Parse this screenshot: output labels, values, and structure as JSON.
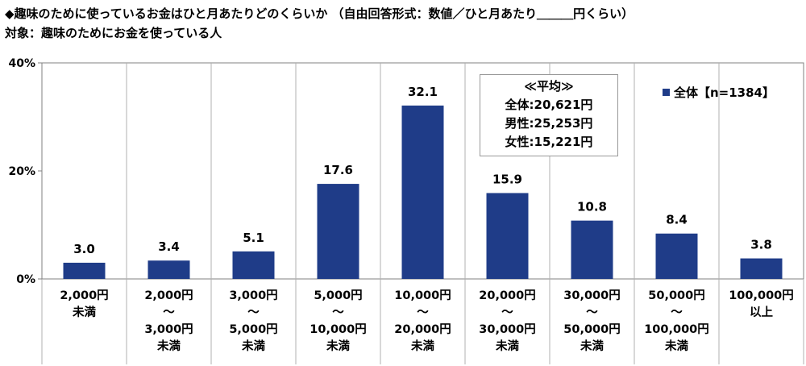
{
  "header": {
    "title": "◆趣味のために使っているお金はひと月あたりどのくらいか （自由回答形式：数値／ひと月あたり＿＿＿円くらい）",
    "subtitle": "対象：趣味のためにお金を使っている人"
  },
  "average_box": {
    "heading": "≪平均≫",
    "lines": [
      "全体:20,621円",
      "男性:25,253円",
      "女性:15,221円"
    ]
  },
  "legend": {
    "label": "全体【n=1384】"
  },
  "colors": {
    "bar": "#1f3c88",
    "grid": "#b0b0b0",
    "axis": "#808080"
  },
  "chart_data": {
    "type": "bar",
    "title": "◆趣味のために使っているお金はひと月あたりどのくらいか （自由回答形式：数値／ひと月あたり＿＿＿円くらい）",
    "ylim": [
      0,
      40
    ],
    "yticks": [
      "0%",
      "20%",
      "40%"
    ],
    "categories": [
      [
        "2,000円",
        "未満"
      ],
      [
        "2,000円",
        "～",
        "3,000円",
        "未満"
      ],
      [
        "3,000円",
        "～",
        "5,000円",
        "未満"
      ],
      [
        "5,000円",
        "～",
        "10,000円",
        "未満"
      ],
      [
        "10,000円",
        "～",
        "20,000円",
        "未満"
      ],
      [
        "20,000円",
        "～",
        "30,000円",
        "未満"
      ],
      [
        "30,000円",
        "～",
        "50,000円",
        "未満"
      ],
      [
        "50,000円",
        "～",
        "100,000円",
        "未満"
      ],
      [
        "100,000円",
        "以上"
      ]
    ],
    "series": [
      {
        "name": "全体【n=1384】",
        "values": [
          3.0,
          3.4,
          5.1,
          17.6,
          32.1,
          15.9,
          10.8,
          8.4,
          3.8
        ]
      }
    ],
    "value_labels": [
      "3.0",
      "3.4",
      "5.1",
      "17.6",
      "32.1",
      "15.9",
      "10.8",
      "8.4",
      "3.8"
    ]
  }
}
